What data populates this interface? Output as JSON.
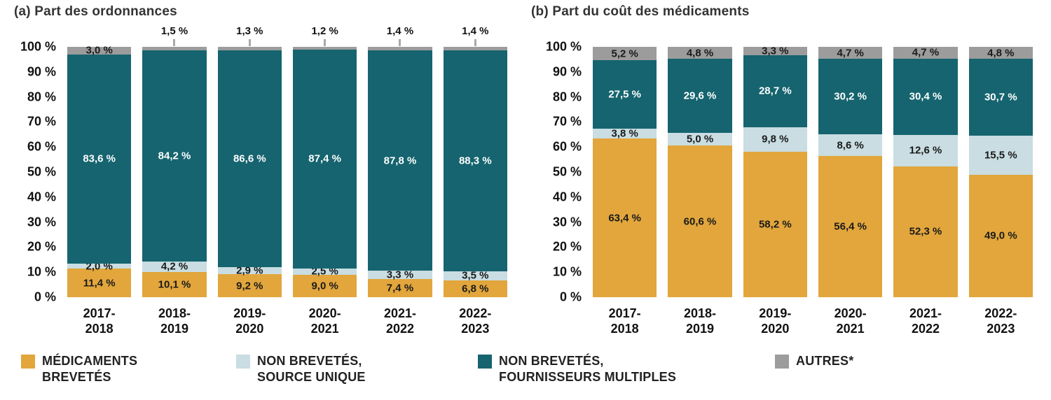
{
  "chart_data": [
    {
      "type": "bar",
      "stacked": true,
      "title": "(a) Part des ordonnances",
      "categories": [
        "2017-2018",
        "2018-2019",
        "2019-2020",
        "2020-2021",
        "2021-2022",
        "2022-2023"
      ],
      "ylim": [
        0,
        100
      ],
      "y_ticks": [
        "100 %",
        "90 %",
        "80 %",
        "70 %",
        "60 %",
        "50 %",
        "40 %",
        "30 %",
        "20 %",
        "10 %",
        "0 %"
      ],
      "grid": false,
      "legend_position": "bottom",
      "series": [
        {
          "name": "MÉDICAMENTS BREVETÉS",
          "color": "#E2A63C",
          "label_color": "#1a1a1a",
          "values": [
            11.4,
            10.1,
            9.2,
            9.0,
            7.4,
            6.8
          ],
          "labels": [
            "11,4 %",
            "10,1 %",
            "9,2 %",
            "9,0 %",
            "7,4 %",
            "6,8 %"
          ]
        },
        {
          "name": "NON BREVETÉS, SOURCE UNIQUE",
          "color": "#C9DDE2",
          "label_color": "#1a1a1a",
          "values": [
            2.0,
            4.2,
            2.9,
            2.5,
            3.3,
            3.5
          ],
          "labels": [
            "2,0 %",
            "4,2 %",
            "2,9 %",
            "2,5 %",
            "3,3 %",
            "3,5 %"
          ]
        },
        {
          "name": "NON BREVETÉS, FOURNISSEURS MULTIPLES",
          "color": "#15646F",
          "label_color": "#ffffff",
          "values": [
            83.6,
            84.2,
            86.6,
            87.4,
            87.8,
            88.3
          ],
          "labels": [
            "83,6 %",
            "84,2 %",
            "86,6 %",
            "87,4 %",
            "87,8 %",
            "88,3 %"
          ]
        },
        {
          "name": "AUTRES*",
          "color": "#9C9C9C",
          "label_color": "#1a1a1a",
          "values": [
            3.0,
            1.5,
            1.3,
            1.2,
            1.4,
            1.4
          ],
          "labels": [
            "3,0 %",
            "1,5 %",
            "1,3 %",
            "1,2 %",
            "1,4 %",
            "1,4 %"
          ],
          "label_above": [
            false,
            true,
            true,
            true,
            true,
            true
          ]
        }
      ]
    },
    {
      "type": "bar",
      "stacked": true,
      "title": "(b) Part du coût des médicaments",
      "categories": [
        "2017-2018",
        "2018-2019",
        "2019-2020",
        "2020-2021",
        "2021-2022",
        "2022-2023"
      ],
      "ylim": [
        0,
        100
      ],
      "y_ticks": [
        "100 %",
        "90 %",
        "80 %",
        "70 %",
        "60 %",
        "50 %",
        "40 %",
        "30 %",
        "20 %",
        "10 %",
        "0 %"
      ],
      "grid": false,
      "legend_position": "bottom",
      "series": [
        {
          "name": "MÉDICAMENTS BREVETÉS",
          "color": "#E2A63C",
          "label_color": "#1a1a1a",
          "values": [
            63.4,
            60.6,
            58.2,
            56.4,
            52.3,
            49.0
          ],
          "labels": [
            "63,4 %",
            "60,6 %",
            "58,2 %",
            "56,4 %",
            "52,3 %",
            "49,0 %"
          ]
        },
        {
          "name": "NON BREVETÉS, SOURCE UNIQUE",
          "color": "#C9DDE2",
          "label_color": "#1a1a1a",
          "values": [
            3.8,
            5.0,
            9.8,
            8.6,
            12.6,
            15.5
          ],
          "labels": [
            "3,8 %",
            "5,0 %",
            "9,8 %",
            "8,6 %",
            "12,6 %",
            "15,5 %"
          ]
        },
        {
          "name": "NON BREVETÉS, FOURNISSEURS MULTIPLES",
          "color": "#15646F",
          "label_color": "#ffffff",
          "values": [
            27.5,
            29.6,
            28.7,
            30.2,
            30.4,
            30.7
          ],
          "labels": [
            "27,5 %",
            "29,6 %",
            "28,7 %",
            "30,2 %",
            "30,4 %",
            "30,7 %"
          ]
        },
        {
          "name": "AUTRES*",
          "color": "#9C9C9C",
          "label_color": "#1a1a1a",
          "values": [
            5.2,
            4.8,
            3.3,
            4.7,
            4.7,
            4.8
          ],
          "labels": [
            "5,2 %",
            "4,8 %",
            "3,3 %",
            "4,7 %",
            "4,7 %",
            "4,8 %"
          ]
        }
      ]
    }
  ],
  "legend": {
    "items": [
      {
        "label_lines": [
          "MÉDICAMENTS",
          "BREVETÉS"
        ],
        "color": "#E2A63C"
      },
      {
        "label_lines": [
          "NON BREVETÉS,",
          "SOURCE UNIQUE"
        ],
        "color": "#C9DDE2"
      },
      {
        "label_lines": [
          "NON BREVETÉS,",
          "FOURNISSEURS MULTIPLES"
        ],
        "color": "#15646F"
      },
      {
        "label_lines": [
          "AUTRES*"
        ],
        "color": "#9C9C9C"
      }
    ]
  }
}
